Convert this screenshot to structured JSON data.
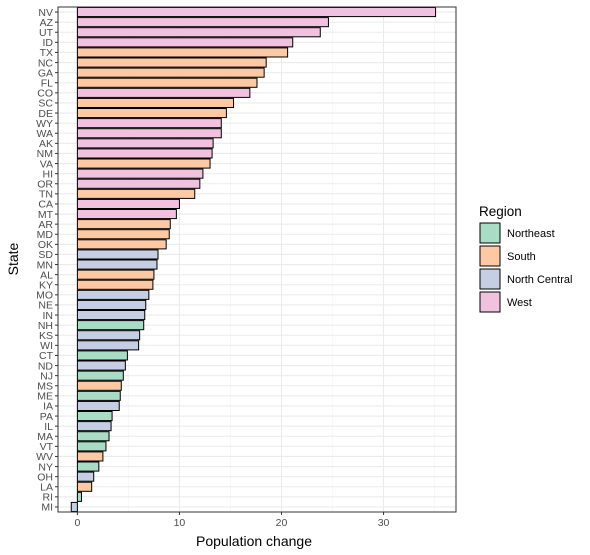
{
  "chart_data": {
    "type": "bar",
    "orientation": "horizontal",
    "xlabel": "Population change",
    "ylabel": "State",
    "xlim": [
      -1.9,
      37.1
    ],
    "xticks": [
      0,
      10,
      20,
      30
    ],
    "grid": true,
    "legend": {
      "title": "Region",
      "placement": "right",
      "entries": [
        {
          "name": "Northeast",
          "color": "#a8dcc5"
        },
        {
          "name": "South",
          "color": "#fdc9a5"
        },
        {
          "name": "North Central",
          "color": "#c5cee3"
        },
        {
          "name": "West",
          "color": "#f1c2e0"
        }
      ]
    },
    "bars": [
      {
        "state": "NV",
        "value": 35.1,
        "region": "West"
      },
      {
        "state": "AZ",
        "value": 24.6,
        "region": "West"
      },
      {
        "state": "UT",
        "value": 23.8,
        "region": "West"
      },
      {
        "state": "ID",
        "value": 21.1,
        "region": "West"
      },
      {
        "state": "TX",
        "value": 20.6,
        "region": "South"
      },
      {
        "state": "NC",
        "value": 18.5,
        "region": "South"
      },
      {
        "state": "GA",
        "value": 18.3,
        "region": "South"
      },
      {
        "state": "FL",
        "value": 17.6,
        "region": "South"
      },
      {
        "state": "CO",
        "value": 16.9,
        "region": "West"
      },
      {
        "state": "SC",
        "value": 15.3,
        "region": "South"
      },
      {
        "state": "DE",
        "value": 14.6,
        "region": "South"
      },
      {
        "state": "WY",
        "value": 14.1,
        "region": "West"
      },
      {
        "state": "WA",
        "value": 14.1,
        "region": "West"
      },
      {
        "state": "AK",
        "value": 13.3,
        "region": "West"
      },
      {
        "state": "NM",
        "value": 13.2,
        "region": "West"
      },
      {
        "state": "VA",
        "value": 13.0,
        "region": "South"
      },
      {
        "state": "HI",
        "value": 12.3,
        "region": "West"
      },
      {
        "state": "OR",
        "value": 12.0,
        "region": "West"
      },
      {
        "state": "TN",
        "value": 11.5,
        "region": "South"
      },
      {
        "state": "CA",
        "value": 10.0,
        "region": "West"
      },
      {
        "state": "MT",
        "value": 9.7,
        "region": "West"
      },
      {
        "state": "AR",
        "value": 9.1,
        "region": "South"
      },
      {
        "state": "MD",
        "value": 9.0,
        "region": "South"
      },
      {
        "state": "OK",
        "value": 8.7,
        "region": "South"
      },
      {
        "state": "SD",
        "value": 7.9,
        "region": "North Central"
      },
      {
        "state": "MN",
        "value": 7.8,
        "region": "North Central"
      },
      {
        "state": "AL",
        "value": 7.5,
        "region": "South"
      },
      {
        "state": "KY",
        "value": 7.4,
        "region": "South"
      },
      {
        "state": "MO",
        "value": 7.0,
        "region": "North Central"
      },
      {
        "state": "NE",
        "value": 6.7,
        "region": "North Central"
      },
      {
        "state": "IN",
        "value": 6.6,
        "region": "North Central"
      },
      {
        "state": "NH",
        "value": 6.5,
        "region": "Northeast"
      },
      {
        "state": "KS",
        "value": 6.1,
        "region": "North Central"
      },
      {
        "state": "WI",
        "value": 6.0,
        "region": "North Central"
      },
      {
        "state": "CT",
        "value": 4.9,
        "region": "Northeast"
      },
      {
        "state": "ND",
        "value": 4.7,
        "region": "North Central"
      },
      {
        "state": "NJ",
        "value": 4.5,
        "region": "Northeast"
      },
      {
        "state": "MS",
        "value": 4.3,
        "region": "South"
      },
      {
        "state": "ME",
        "value": 4.2,
        "region": "Northeast"
      },
      {
        "state": "IA",
        "value": 4.1,
        "region": "North Central"
      },
      {
        "state": "PA",
        "value": 3.4,
        "region": "Northeast"
      },
      {
        "state": "IL",
        "value": 3.3,
        "region": "North Central"
      },
      {
        "state": "MA",
        "value": 3.1,
        "region": "Northeast"
      },
      {
        "state": "VT",
        "value": 2.8,
        "region": "Northeast"
      },
      {
        "state": "WV",
        "value": 2.5,
        "region": "South"
      },
      {
        "state": "NY",
        "value": 2.1,
        "region": "Northeast"
      },
      {
        "state": "OH",
        "value": 1.6,
        "region": "North Central"
      },
      {
        "state": "LA",
        "value": 1.4,
        "region": "South"
      },
      {
        "state": "RI",
        "value": 0.4,
        "region": "Northeast"
      },
      {
        "state": "MI",
        "value": -0.6,
        "region": "North Central"
      }
    ]
  }
}
